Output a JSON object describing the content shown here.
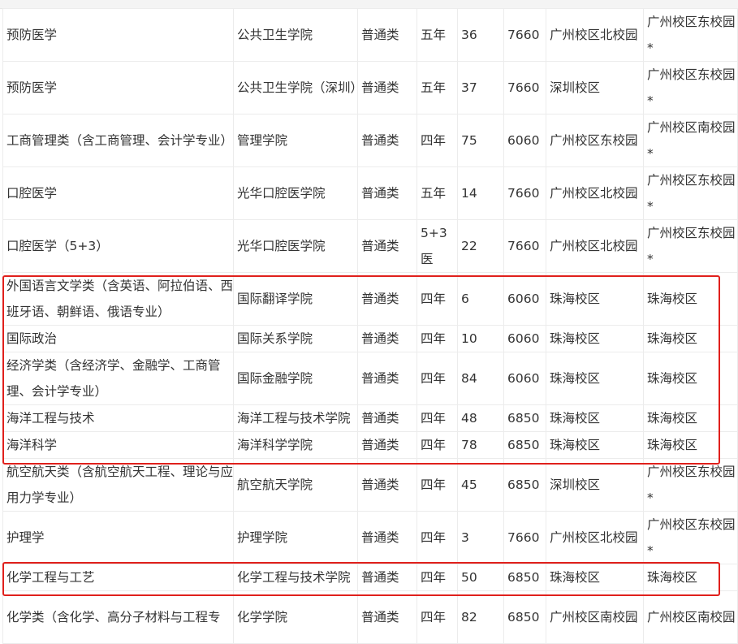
{
  "rows": [
    [
      "预防医学",
      "公共卫生学院",
      "普通类",
      "五年",
      "36",
      "7660",
      "广州校区北校园",
      "广州校区东校园*"
    ],
    [
      "预防医学",
      "公共卫生学院（深圳）",
      "普通类",
      "五年",
      "37",
      "7660",
      "深圳校区",
      "广州校区东校园*"
    ],
    [
      "工商管理类（含工商管理、会计学专业）",
      "管理学院",
      "普通类",
      "四年",
      "75",
      "6060",
      "广州校区东校园",
      "广州校区南校园*"
    ],
    [
      "口腔医学",
      "光华口腔医学院",
      "普通类",
      "五年",
      "14",
      "7660",
      "广州校区北校园",
      "广州校区东校园*"
    ],
    [
      "口腔医学（5+3）",
      "光华口腔医学院",
      "普通类",
      "5+3医",
      "22",
      "7660",
      "广州校区北校园",
      "广州校区东校园*"
    ],
    [
      "外国语言文学类（含英语、阿拉伯语、西班牙语、朝鲜语、俄语专业）",
      "国际翻译学院",
      "普通类",
      "四年",
      "6",
      "6060",
      "珠海校区",
      "珠海校区"
    ],
    [
      "国际政治",
      "国际关系学院",
      "普通类",
      "四年",
      "10",
      "6060",
      "珠海校区",
      "珠海校区"
    ],
    [
      "经济学类（含经济学、金融学、工商管理、会计学专业）",
      "国际金融学院",
      "普通类",
      "四年",
      "84",
      "6060",
      "珠海校区",
      "珠海校区"
    ],
    [
      "海洋工程与技术",
      "海洋工程与技术学院",
      "普通类",
      "四年",
      "48",
      "6850",
      "珠海校区",
      "珠海校区"
    ],
    [
      "海洋科学",
      "海洋科学学院",
      "普通类",
      "四年",
      "78",
      "6850",
      "珠海校区",
      "珠海校区"
    ],
    [
      "航空航天类（含航空航天工程、理论与应用力学专业）",
      "航空航天学院",
      "普通类",
      "四年",
      "45",
      "6850",
      "深圳校区",
      "广州校区东校园*"
    ],
    [
      "护理学",
      "护理学院",
      "普通类",
      "四年",
      "3",
      "7660",
      "广州校区北校园",
      "广州校区东校园*"
    ],
    [
      "化学工程与工艺",
      "化学工程与技术学院",
      "普通类",
      "四年",
      "50",
      "6850",
      "珠海校区",
      "珠海校区"
    ],
    [
      "化学类（含化学、高分子材料与工程专",
      "化学学院",
      "普通类",
      "四年",
      "82",
      "6850",
      "广州校区南校园",
      "广州校区南校园"
    ]
  ],
  "highlight_color": "#e0201c"
}
